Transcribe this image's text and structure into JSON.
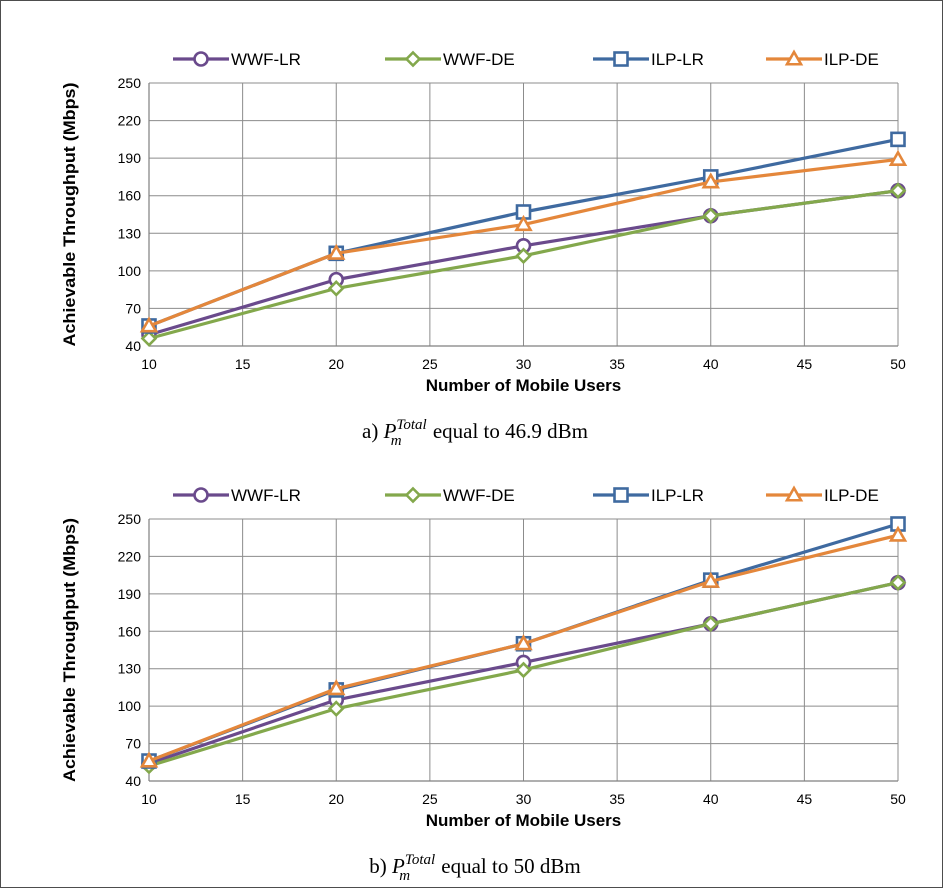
{
  "chart_data": [
    {
      "type": "line",
      "x": [
        10,
        20,
        30,
        40,
        50
      ],
      "xlabel": "Number of Mobile Users",
      "ylabel": "Achievable Throughput (Mbps)",
      "xlim": [
        10,
        50
      ],
      "ylim": [
        40,
        250
      ],
      "xticks": [
        "10",
        "15",
        "20",
        "25",
        "30",
        "35",
        "40",
        "45",
        "50"
      ],
      "yticks": [
        "40",
        "70",
        "100",
        "130",
        "160",
        "190",
        "220",
        "250"
      ],
      "grid": true,
      "legend": "top",
      "caption": {
        "prefix": "a) ",
        "symbol": "P",
        "sup": "Total",
        "sub": "m",
        "suffix": " equal to 46.9 dBm"
      },
      "series": [
        {
          "name": "WWF-LR",
          "values": [
            49,
            93,
            120,
            144,
            164
          ]
        },
        {
          "name": "WWF-DE",
          "values": [
            46,
            86,
            112,
            144,
            164
          ]
        },
        {
          "name": "ILP-LR",
          "values": [
            56,
            114,
            147,
            175,
            205
          ]
        },
        {
          "name": "ILP-DE",
          "values": [
            56,
            114,
            137,
            171,
            189
          ]
        }
      ]
    },
    {
      "type": "line",
      "x": [
        10,
        20,
        30,
        40,
        50
      ],
      "xlabel": "Number of Mobile Users",
      "ylabel": "Achievable Throughput (Mbps)",
      "xlim": [
        10,
        50
      ],
      "ylim": [
        40,
        250
      ],
      "xticks": [
        "10",
        "15",
        "20",
        "25",
        "30",
        "35",
        "40",
        "45",
        "50"
      ],
      "yticks": [
        "40",
        "70",
        "100",
        "130",
        "160",
        "190",
        "220",
        "250"
      ],
      "grid": true,
      "legend": "top",
      "caption": {
        "prefix": "b) ",
        "symbol": "P",
        "sup": "Total",
        "sub": "m",
        "suffix": " equal to 50 dBm"
      },
      "series": [
        {
          "name": "WWF-LR",
          "values": [
            54,
            105,
            135,
            166,
            199
          ]
        },
        {
          "name": "WWF-DE",
          "values": [
            52,
            98,
            129,
            166,
            199
          ]
        },
        {
          "name": "ILP-LR",
          "values": [
            56,
            113,
            150,
            201,
            246
          ]
        },
        {
          "name": "ILP-DE",
          "values": [
            56,
            114,
            150,
            200,
            237
          ]
        }
      ]
    }
  ],
  "colors": {
    "WWF-LR": "#6a4a8c",
    "WWF-DE": "#83a84c",
    "ILP-LR": "#3f6aa0",
    "ILP-DE": "#e4873b"
  },
  "markers": {
    "WWF-LR": "circle",
    "WWF-DE": "diamond",
    "ILP-LR": "square",
    "ILP-DE": "triangle"
  }
}
